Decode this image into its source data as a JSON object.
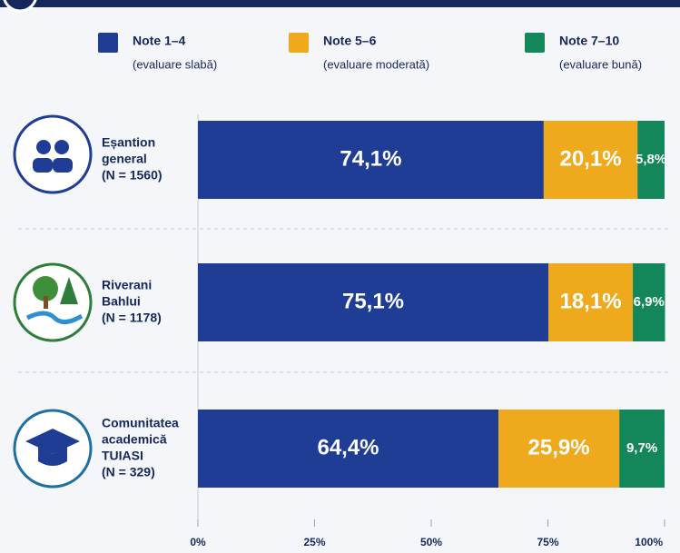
{
  "chart_data": {
    "type": "stacked-barh",
    "categories": [
      [
        "Eșantion",
        "general",
        "(N = 1560)"
      ],
      [
        "Riverani",
        "Bahlui",
        "(N = 1178)"
      ],
      [
        "Comunitatea",
        "academică",
        "TUIASI",
        "(N = 329)"
      ]
    ],
    "series": [
      {
        "name": "Note 1–4",
        "description": "(evaluare slabă)",
        "color": "#1f3d94",
        "values": [
          74.1,
          75.1,
          64.4
        ],
        "value_labels": [
          "74,1%",
          "75,1%",
          "64,4%"
        ]
      },
      {
        "name": "Note 5–6",
        "description": "(evaluare moderată)",
        "color": "#efa91c",
        "values": [
          20.1,
          18.1,
          25.9
        ],
        "value_labels": [
          "20,1%",
          "18,1%",
          "25,9%"
        ]
      },
      {
        "name": "Note 7–10",
        "description": "(evaluare bună)",
        "color": "#13875a",
        "values": [
          5.8,
          6.9,
          9.7
        ],
        "value_labels": [
          "5,8%",
          "6,9%",
          "9,7%"
        ]
      }
    ],
    "xlim": [
      0,
      100
    ],
    "xticks": [
      {
        "value": 0,
        "label": "0%"
      },
      {
        "value": 25,
        "label": "25%"
      },
      {
        "value": 50,
        "label": "50%"
      },
      {
        "value": 75,
        "label": "75%"
      },
      {
        "value": 100,
        "label": "100%"
      }
    ]
  }
}
